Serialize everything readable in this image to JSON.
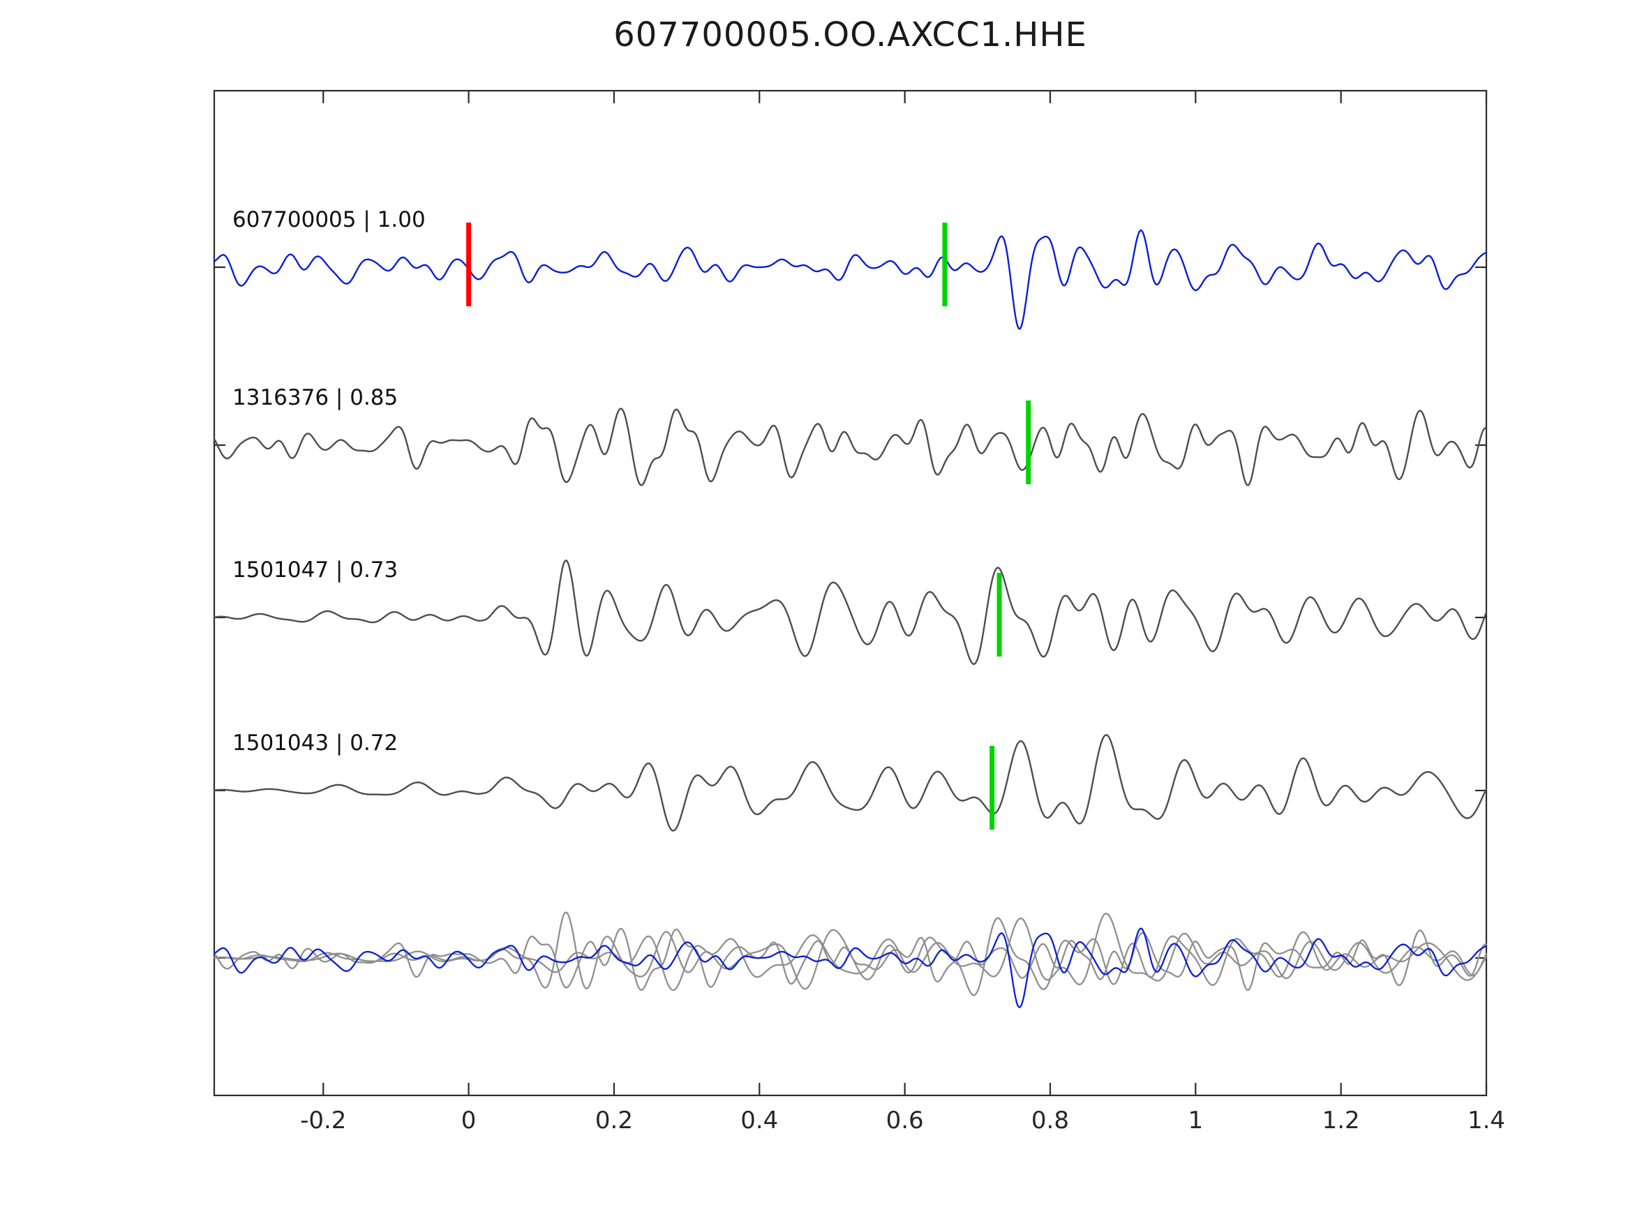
{
  "chart_data": {
    "type": "line",
    "title": "607700005.OO.AXCC1.HHE",
    "xlabel": "",
    "ylabel": "",
    "xlim": [
      -0.35,
      1.4
    ],
    "grid": false,
    "legend": "none",
    "x_ticks": [
      -0.2,
      0,
      0.2,
      0.4,
      0.6,
      0.8,
      1,
      1.2,
      1.4
    ],
    "x_tick_labels": [
      "-0.2",
      "0",
      "0.2",
      "0.4",
      "0.6",
      "0.8",
      "1",
      "1.2",
      "1.4"
    ],
    "colors": {
      "reference_trace": "#0a1fd4",
      "detection_trace": "#4d4d4d",
      "overlay_gray": "#8f8f8f",
      "origin_pick": "#ff0000",
      "phase_pick": "#00d400",
      "frame": "#2b2b2b",
      "tick": "#2b2b2b"
    },
    "traces": [
      {
        "id": "607700005",
        "label": "607700005 | 1.00",
        "similarity": 1.0,
        "color": "#0a1fd4",
        "picks": [
          {
            "x": 0.0,
            "color": "#ff0000",
            "name": "origin-pick"
          },
          {
            "x": 0.655,
            "color": "#00d400",
            "name": "phase-pick"
          }
        ],
        "synthesis": {
          "seed": 101,
          "n_components": 15,
          "f_min": 7,
          "f_max": 34,
          "amp": 21,
          "envelope": [
            [
              -0.35,
              0.55
            ],
            [
              0.1,
              0.62
            ],
            [
              0.3,
              0.55
            ],
            [
              0.5,
              0.6
            ],
            [
              0.62,
              0.75
            ],
            [
              0.7,
              1.05
            ],
            [
              0.78,
              2.0
            ],
            [
              0.86,
              1.7
            ],
            [
              0.95,
              1.05
            ],
            [
              1.05,
              0.8
            ],
            [
              1.4,
              0.72
            ]
          ]
        }
      },
      {
        "id": "1316376",
        "label": "1316376 | 0.85",
        "similarity": 0.85,
        "color": "#4d4d4d",
        "picks": [
          {
            "x": 0.77,
            "color": "#00d400",
            "name": "phase-pick"
          }
        ],
        "synthesis": {
          "seed": 202,
          "n_components": 15,
          "f_min": 8,
          "f_max": 36,
          "amp": 21,
          "envelope": [
            [
              -0.35,
              0.5
            ],
            [
              0.0,
              0.55
            ],
            [
              0.08,
              1.0
            ],
            [
              0.2,
              1.25
            ],
            [
              0.45,
              1.0
            ],
            [
              0.65,
              1.05
            ],
            [
              0.8,
              1.35
            ],
            [
              0.95,
              1.1
            ],
            [
              1.4,
              0.95
            ]
          ]
        }
      },
      {
        "id": "1501047",
        "label": "1501047 | 0.73",
        "similarity": 0.73,
        "color": "#4d4d4d",
        "picks": [
          {
            "x": 0.73,
            "color": "#00d400",
            "name": "phase-pick"
          }
        ],
        "synthesis": {
          "seed": 303,
          "n_components": 13,
          "f_min": 6,
          "f_max": 22,
          "amp": 23,
          "envelope": [
            [
              -0.35,
              0.16
            ],
            [
              0.02,
              0.2
            ],
            [
              0.07,
              0.8
            ],
            [
              0.13,
              1.5
            ],
            [
              0.22,
              1.25
            ],
            [
              0.4,
              1.1
            ],
            [
              0.6,
              0.95
            ],
            [
              0.8,
              1.2
            ],
            [
              1.0,
              1.05
            ],
            [
              1.4,
              0.9
            ]
          ]
        }
      },
      {
        "id": "1501043",
        "label": "1501043 | 0.72",
        "similarity": 0.72,
        "color": "#4d4d4d",
        "picks": [
          {
            "x": 0.72,
            "color": "#00d400",
            "name": "phase-pick"
          }
        ],
        "synthesis": {
          "seed": 404,
          "n_components": 13,
          "f_min": 6,
          "f_max": 23,
          "amp": 23,
          "envelope": [
            [
              -0.35,
              0.16
            ],
            [
              0.02,
              0.2
            ],
            [
              0.07,
              0.8
            ],
            [
              0.13,
              1.5
            ],
            [
              0.24,
              1.3
            ],
            [
              0.42,
              1.05
            ],
            [
              0.62,
              0.95
            ],
            [
              0.82,
              1.25
            ],
            [
              1.05,
              1.05
            ],
            [
              1.4,
              0.9
            ]
          ]
        }
      }
    ],
    "overlay_row": {
      "description": "all detection traces (gray) superimposed with reference trace (blue)",
      "member_indices": [
        1,
        2,
        3,
        0
      ],
      "amp_scale": 0.8,
      "gray_color": "#8f8f8f",
      "blue_color": "#0a1fd4"
    }
  }
}
